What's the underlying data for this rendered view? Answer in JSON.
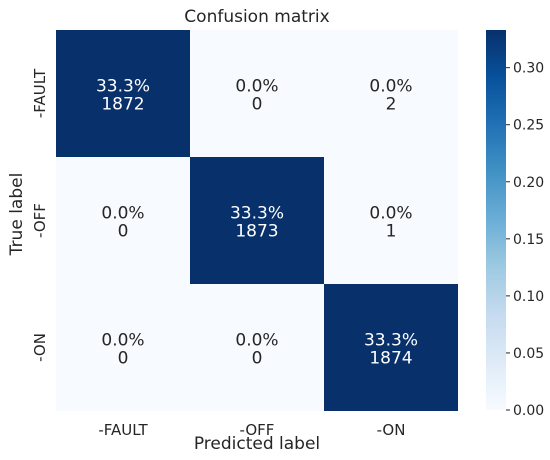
{
  "chart_data": {
    "type": "heatmap",
    "title": "Confusion matrix",
    "xlabel": "Predicted label",
    "ylabel": "True label",
    "x_categories": [
      "-FAULT",
      "-OFF",
      "-ON"
    ],
    "y_categories": [
      "-FAULT",
      "-OFF",
      "-ON"
    ],
    "values": [
      [
        0.333,
        0.0,
        0.0
      ],
      [
        0.0,
        0.333,
        0.0
      ],
      [
        0.0,
        0.0,
        0.333
      ]
    ],
    "cell_labels": [
      [
        [
          "33.3%",
          "1872"
        ],
        [
          "0.0%",
          "0"
        ],
        [
          "0.0%",
          "2"
        ]
      ],
      [
        [
          "0.0%",
          "0"
        ],
        [
          "33.3%",
          "1873"
        ],
        [
          "0.0%",
          "1"
        ]
      ],
      [
        [
          "0.0%",
          "0"
        ],
        [
          "0.0%",
          "0"
        ],
        [
          "33.3%",
          "1874"
        ]
      ]
    ],
    "colorbar": {
      "range": [
        0.0,
        0.333
      ],
      "ticks": [
        "0.00",
        "0.05",
        "0.10",
        "0.15",
        "0.20",
        "0.25",
        "0.30"
      ],
      "tick_values": [
        0.0,
        0.05,
        0.1,
        0.15,
        0.2,
        0.25,
        0.3
      ],
      "colormap": "Blues",
      "low_color": "#f7fbff",
      "high_color": "#08306b"
    },
    "grid": false
  }
}
